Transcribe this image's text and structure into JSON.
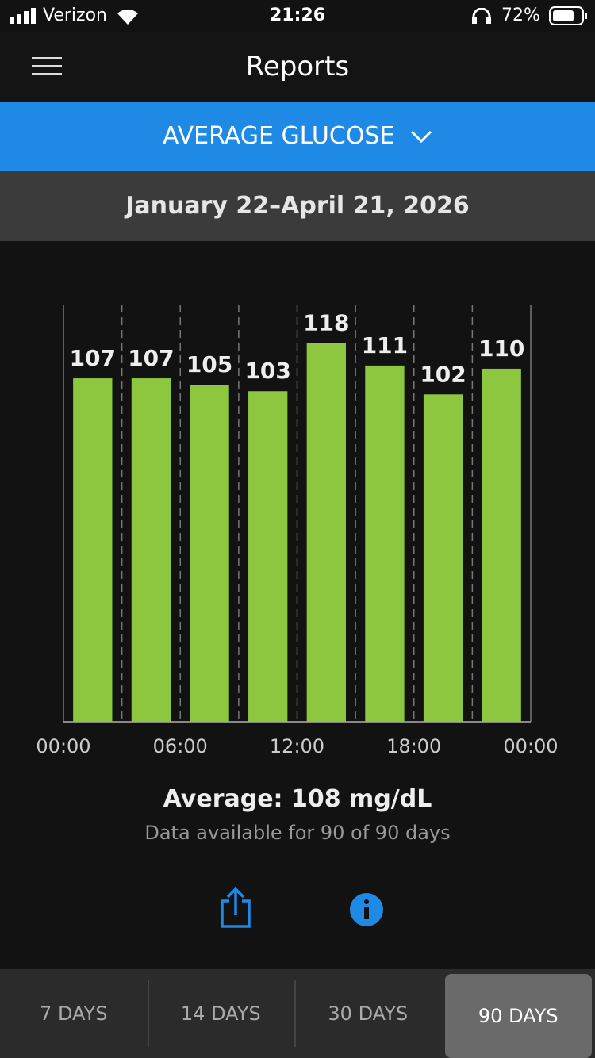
{
  "status_bar": {
    "carrier": "Verizon",
    "time": "21:26",
    "battery": "72%"
  },
  "header": {
    "title": "Reports"
  },
  "report_selector": {
    "label": "AVERAGE GLUCOSE"
  },
  "date_range": "January 22–April 21, 2026",
  "chart_data": {
    "type": "bar",
    "x": [
      1.5,
      4.5,
      7.5,
      10.5,
      13.5,
      16.5,
      19.5,
      22.5
    ],
    "values": [
      107,
      107,
      105,
      103,
      118,
      111,
      102,
      110
    ],
    "color": "#8dc63f",
    "xlim": [
      0,
      24
    ],
    "xticks": [
      {
        "value": 0,
        "label": "00:00"
      },
      {
        "value": 6,
        "label": "06:00"
      },
      {
        "value": 12,
        "label": "12:00"
      },
      {
        "value": 18,
        "label": "18:00"
      },
      {
        "value": 24,
        "label": "00:00"
      }
    ],
    "xgrid_minor": [
      3,
      9,
      15,
      21
    ],
    "ylim": [
      0,
      130
    ]
  },
  "summary": {
    "average": "Average: 108 mg/dL",
    "availability": "Data available for 90 of 90 days"
  },
  "tabs": {
    "items": [
      "7 DAYS",
      "14 DAYS",
      "30 DAYS",
      "90 DAYS"
    ],
    "selected": 3
  }
}
